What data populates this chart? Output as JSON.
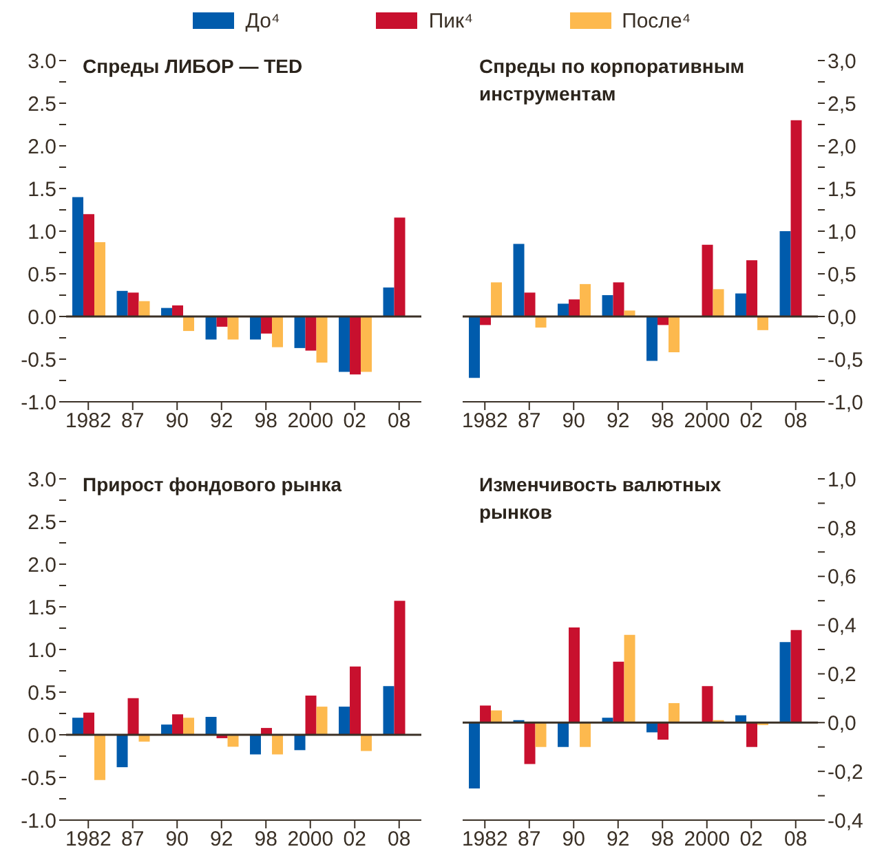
{
  "chart_data": [
    {
      "type": "bar",
      "title": "Спреды ЛИБОР — TED",
      "legend": "top",
      "categories": [
        "1982",
        "87",
        "90",
        "92",
        "98",
        "2000",
        "02",
        "08"
      ],
      "series": [
        {
          "name": "До⁴",
          "color": "#005bac",
          "values": [
            1.4,
            0.3,
            0.1,
            -0.27,
            -0.27,
            -0.37,
            -0.65,
            0.34
          ]
        },
        {
          "name": "Пик⁴",
          "color": "#c8102e",
          "values": [
            1.2,
            0.28,
            0.13,
            -0.12,
            -0.2,
            -0.4,
            -0.68,
            1.16
          ]
        },
        {
          "name": "После⁴",
          "color": "#fdb94e",
          "values": [
            0.87,
            0.18,
            -0.17,
            -0.27,
            -0.36,
            -0.54,
            -0.65,
            null
          ]
        }
      ],
      "ylim": [
        -1,
        3
      ],
      "yticks": [
        {
          "value": -1,
          "label": "-1.0"
        },
        {
          "value": -0.75,
          "label": null
        },
        {
          "value": -0.5,
          "label": "-0.5"
        },
        {
          "value": -0.25,
          "label": null
        },
        {
          "value": 0,
          "label": "0.0"
        },
        {
          "value": 0.25,
          "label": null
        },
        {
          "value": 0.5,
          "label": "0.5"
        },
        {
          "value": 0.75,
          "label": null
        },
        {
          "value": 1,
          "label": "1.0"
        },
        {
          "value": 1.25,
          "label": null
        },
        {
          "value": 1.5,
          "label": "1.5"
        },
        {
          "value": 1.75,
          "label": null
        },
        {
          "value": 2,
          "label": "2.0"
        },
        {
          "value": 2.25,
          "label": null
        },
        {
          "value": 2.5,
          "label": "2.5"
        },
        {
          "value": 2.75,
          "label": null
        },
        {
          "value": 3,
          "label": "3.0"
        }
      ],
      "ref_lines": [
        {
          "axis": "y",
          "value": 0
        }
      ]
    },
    {
      "type": "bar",
      "title": "Спреды по корпоративным инструментам",
      "categories": [
        "1982",
        "87",
        "90",
        "92",
        "98",
        "2000",
        "02",
        "08"
      ],
      "series": [
        {
          "color": "#005bac",
          "axis": "y2",
          "values": [
            -0.72,
            0.85,
            0.15,
            0.25,
            -0.52,
            null,
            0.27,
            1.0
          ]
        },
        {
          "color": "#c8102e",
          "axis": "y2",
          "values": [
            -0.1,
            0.28,
            0.2,
            0.4,
            -0.1,
            0.84,
            0.66,
            2.3
          ]
        },
        {
          "color": "#fdb94e",
          "axis": "y2",
          "values": [
            0.4,
            -0.13,
            0.38,
            0.07,
            -0.42,
            0.32,
            -0.16,
            null
          ]
        }
      ],
      "y2lim": [
        -1,
        3
      ],
      "y2ticks": [
        {
          "value": -1,
          "label": "-1,0"
        },
        {
          "value": -0.75,
          "label": null
        },
        {
          "value": -0.5,
          "label": "-0,5"
        },
        {
          "value": -0.25,
          "label": null
        },
        {
          "value": 0,
          "label": "0,0"
        },
        {
          "value": 0.25,
          "label": null
        },
        {
          "value": 0.5,
          "label": "0,5"
        },
        {
          "value": 0.75,
          "label": null
        },
        {
          "value": 1,
          "label": "1,0"
        },
        {
          "value": 1.25,
          "label": null
        },
        {
          "value": 1.5,
          "label": "1,5"
        },
        {
          "value": 1.75,
          "label": null
        },
        {
          "value": 2,
          "label": "2,0"
        },
        {
          "value": 2.25,
          "label": null
        },
        {
          "value": 2.5,
          "label": "2,5"
        },
        {
          "value": 2.75,
          "label": null
        },
        {
          "value": 3,
          "label": "3,0"
        }
      ],
      "ref_lines": [
        {
          "axis": "y2",
          "value": 0
        }
      ]
    },
    {
      "type": "bar",
      "title": "Прирост фондового рынка",
      "categories": [
        "1982",
        "87",
        "90",
        "92",
        "98",
        "2000",
        "02",
        "08"
      ],
      "series": [
        {
          "color": "#005bac",
          "values": [
            0.2,
            -0.38,
            0.12,
            0.21,
            -0.23,
            -0.18,
            0.33,
            0.57
          ]
        },
        {
          "color": "#c8102e",
          "values": [
            0.26,
            0.43,
            0.24,
            -0.04,
            0.08,
            0.46,
            0.8,
            1.57
          ]
        },
        {
          "color": "#fdb94e",
          "values": [
            -0.53,
            -0.08,
            0.2,
            -0.14,
            -0.23,
            0.33,
            -0.19,
            null
          ]
        }
      ],
      "ylim": [
        -1,
        3
      ],
      "yticks": [
        {
          "value": -1,
          "label": "-1.0"
        },
        {
          "value": -0.75,
          "label": null
        },
        {
          "value": -0.5,
          "label": "-0.5"
        },
        {
          "value": -0.25,
          "label": null
        },
        {
          "value": 0,
          "label": "0.0"
        },
        {
          "value": 0.25,
          "label": null
        },
        {
          "value": 0.5,
          "label": "0.5"
        },
        {
          "value": 0.75,
          "label": null
        },
        {
          "value": 1,
          "label": "1.0"
        },
        {
          "value": 1.25,
          "label": null
        },
        {
          "value": 1.5,
          "label": "1.5"
        },
        {
          "value": 1.75,
          "label": null
        },
        {
          "value": 2,
          "label": "2.0"
        },
        {
          "value": 2.25,
          "label": null
        },
        {
          "value": 2.5,
          "label": "2.5"
        },
        {
          "value": 2.75,
          "label": null
        },
        {
          "value": 3,
          "label": "3.0"
        }
      ],
      "ref_lines": [
        {
          "axis": "y",
          "value": 0
        }
      ]
    },
    {
      "type": "bar",
      "title": "Изменчивость валютных рынков",
      "categories": [
        "1982",
        "87",
        "90",
        "92",
        "98",
        "2000",
        "02",
        "08"
      ],
      "series": [
        {
          "color": "#005bac",
          "axis": "y2",
          "values": [
            -0.27,
            0.01,
            -0.1,
            0.02,
            -0.04,
            null,
            0.03,
            0.33
          ]
        },
        {
          "color": "#c8102e",
          "axis": "y2",
          "values": [
            0.07,
            -0.17,
            0.39,
            0.25,
            -0.07,
            0.15,
            -0.1,
            0.38
          ]
        },
        {
          "color": "#fdb94e",
          "axis": "y2",
          "values": [
            0.05,
            -0.1,
            -0.1,
            0.36,
            0.08,
            0.01,
            -0.01,
            null
          ]
        }
      ],
      "y2lim": [
        -0.4,
        1
      ],
      "y2ticks": [
        {
          "value": -0.4,
          "label": "-0,4"
        },
        {
          "value": -0.3,
          "label": null
        },
        {
          "value": -0.2,
          "label": "-0,2"
        },
        {
          "value": -0.1,
          "label": null
        },
        {
          "value": 0,
          "label": "0,0"
        },
        {
          "value": 0.1,
          "label": null
        },
        {
          "value": 0.2,
          "label": "0,2"
        },
        {
          "value": 0.3,
          "label": null
        },
        {
          "value": 0.4,
          "label": "0,4"
        },
        {
          "value": 0.5,
          "label": null
        },
        {
          "value": 0.6,
          "label": "0,6"
        },
        {
          "value": 0.7,
          "label": null
        },
        {
          "value": 0.8,
          "label": "0,8"
        },
        {
          "value": 0.9,
          "label": null
        },
        {
          "value": 1,
          "label": "1,0"
        }
      ],
      "ref_lines": [
        {
          "axis": "y2",
          "value": 0
        }
      ]
    }
  ]
}
